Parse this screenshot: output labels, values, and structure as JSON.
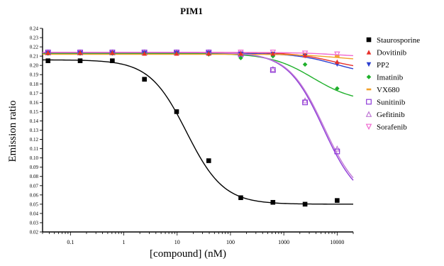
{
  "chart_data": {
    "type": "scatter",
    "title": "PIM1",
    "xlabel": "[compound] (nM)",
    "ylabel": "Emission ratio",
    "x_scale": "log",
    "xlim": [
      0.03,
      20000
    ],
    "ylim": [
      0.02,
      0.24
    ],
    "x_ticks": [
      0.1,
      1,
      10,
      100,
      1000,
      10000
    ],
    "x_tick_labels": [
      "0.1",
      "1",
      "10",
      "100",
      "1000",
      "10000"
    ],
    "y_ticks": [
      0.02,
      0.03,
      0.04,
      0.05,
      0.06,
      0.07,
      0.08,
      0.09,
      0.1,
      0.11,
      0.12,
      0.13,
      0.14,
      0.15,
      0.16,
      0.17,
      0.18,
      0.19,
      0.2,
      0.21,
      0.22,
      0.23,
      0.24
    ],
    "y_tick_labels": [
      "0.02",
      "0.03",
      "0.04",
      "0.05",
      "0.06",
      "0.07",
      "0.08",
      "0.09",
      "0.10",
      "0.11",
      "0.12",
      "0.13",
      "0.14",
      "0.15",
      "0.16",
      "0.17",
      "0.18",
      "0.19",
      "0.20",
      "0.21",
      "0.22",
      "0.23",
      "0.24"
    ],
    "grid": false,
    "legend_position": "right",
    "x": [
      0.038,
      0.152,
      0.61,
      2.44,
      9.77,
      39.1,
      156,
      625,
      2500,
      10000
    ],
    "series": [
      {
        "name": "Staurosporine",
        "color": "#000000",
        "marker": "square",
        "values": [
          0.205,
          0.205,
          0.205,
          0.185,
          0.15,
          0.097,
          0.057,
          0.052,
          0.05,
          0.054
        ],
        "fit": {
          "top": 0.206,
          "bottom": 0.05,
          "ic50": 15,
          "hill": 1.25
        }
      },
      {
        "name": "Dovitinib",
        "color": "#e8302a",
        "marker": "triangle-up",
        "values": [
          0.214,
          0.214,
          0.214,
          0.213,
          0.213,
          0.213,
          0.213,
          0.213,
          0.211,
          0.204
        ],
        "fit": {
          "top": 0.214,
          "bottom": 0.195,
          "ic50": 8000,
          "hill": 1.2
        }
      },
      {
        "name": "PP2",
        "color": "#2c3fd0",
        "marker": "triangle-down",
        "values": [
          0.213,
          0.213,
          0.213,
          0.213,
          0.213,
          0.213,
          0.212,
          0.212,
          0.21,
          0.201
        ],
        "fit": {
          "top": 0.213,
          "bottom": 0.19,
          "ic50": 9000,
          "hill": 1.2
        }
      },
      {
        "name": "Imatinib",
        "color": "#1fb02b",
        "marker": "diamond",
        "values": [
          0.213,
          0.213,
          0.213,
          0.213,
          0.213,
          0.212,
          0.208,
          0.21,
          0.201,
          0.175
        ],
        "fit": {
          "top": 0.213,
          "bottom": 0.16,
          "ic50": 3500,
          "hill": 1.1
        }
      },
      {
        "name": "VX680",
        "color": "#f2a12a",
        "marker": "bar",
        "values": [
          0.212,
          0.212,
          0.212,
          0.212,
          0.212,
          0.212,
          0.212,
          0.212,
          0.212,
          0.21
        ],
        "fit": {
          "top": 0.212,
          "bottom": 0.205,
          "ic50": 10000,
          "hill": 1.2
        }
      },
      {
        "name": "Sunitinib",
        "color": "#8e3ad8",
        "marker": "square-open",
        "values": [
          0.214,
          0.214,
          0.214,
          0.214,
          0.214,
          0.214,
          0.212,
          0.195,
          0.16,
          0.107
        ],
        "fit": {
          "top": 0.214,
          "bottom": 0.05,
          "ic50": 5500,
          "hill": 1.3
        }
      },
      {
        "name": "Gefitinib",
        "color": "#c07ad6",
        "marker": "triangle-open",
        "values": [
          0.214,
          0.214,
          0.214,
          0.214,
          0.214,
          0.214,
          0.213,
          0.196,
          0.162,
          0.11
        ],
        "fit": {
          "top": 0.214,
          "bottom": 0.052,
          "ic50": 5700,
          "hill": 1.3
        }
      },
      {
        "name": "Sorafenib",
        "color": "#f06ad0",
        "marker": "triangle-down-open",
        "values": [
          0.214,
          0.214,
          0.214,
          0.214,
          0.214,
          0.214,
          0.214,
          0.214,
          0.213,
          0.212
        ],
        "fit": {
          "top": 0.214,
          "bottom": 0.209,
          "ic50": 10000,
          "hill": 1.2
        }
      }
    ]
  }
}
